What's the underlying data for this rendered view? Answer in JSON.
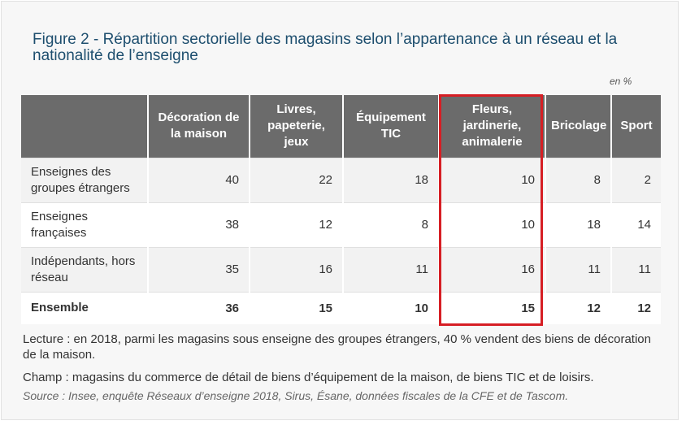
{
  "title": "Figure 2 - Répartition sectorielle des magasins selon l’appartenance à un réseau et la nationalité de l’enseigne",
  "unit": "en %",
  "table": {
    "headers": [
      "",
      "Décoration de la maison",
      "Livres, papeterie, jeux",
      "Équipement TIC",
      "Fleurs, jardinerie, animalerie",
      "Bricolage",
      "Sport"
    ],
    "rows": [
      {
        "label": "Enseignes des groupes étrangers",
        "values": [
          "40",
          "22",
          "18",
          "10",
          "8",
          "2"
        ]
      },
      {
        "label": "Enseignes françaises",
        "values": [
          "38",
          "12",
          "8",
          "10",
          "18",
          "14"
        ]
      },
      {
        "label": "Indépendants, hors réseau",
        "values": [
          "35",
          "16",
          "11",
          "16",
          "11",
          "11"
        ]
      },
      {
        "label": "Ensemble",
        "values": [
          "36",
          "15",
          "10",
          "15",
          "12",
          "12"
        ]
      }
    ]
  },
  "highlight_color": "#d61e24",
  "header_color": "#6b6b6b",
  "title_color": "#1d4e6e",
  "notes": {
    "lecture": "Lecture : en 2018, parmi les magasins sous enseigne des groupes étrangers, 40 % vendent des biens de décoration de la maison.",
    "champ": "Champ : magasins du commerce de détail de biens d’équipement de la maison, de biens TIC et de loisirs.",
    "source": "Source : Insee, enquête Réseaux d’enseigne 2018, Sirus, Ésane, données fiscales de la CFE et de Tascom."
  }
}
